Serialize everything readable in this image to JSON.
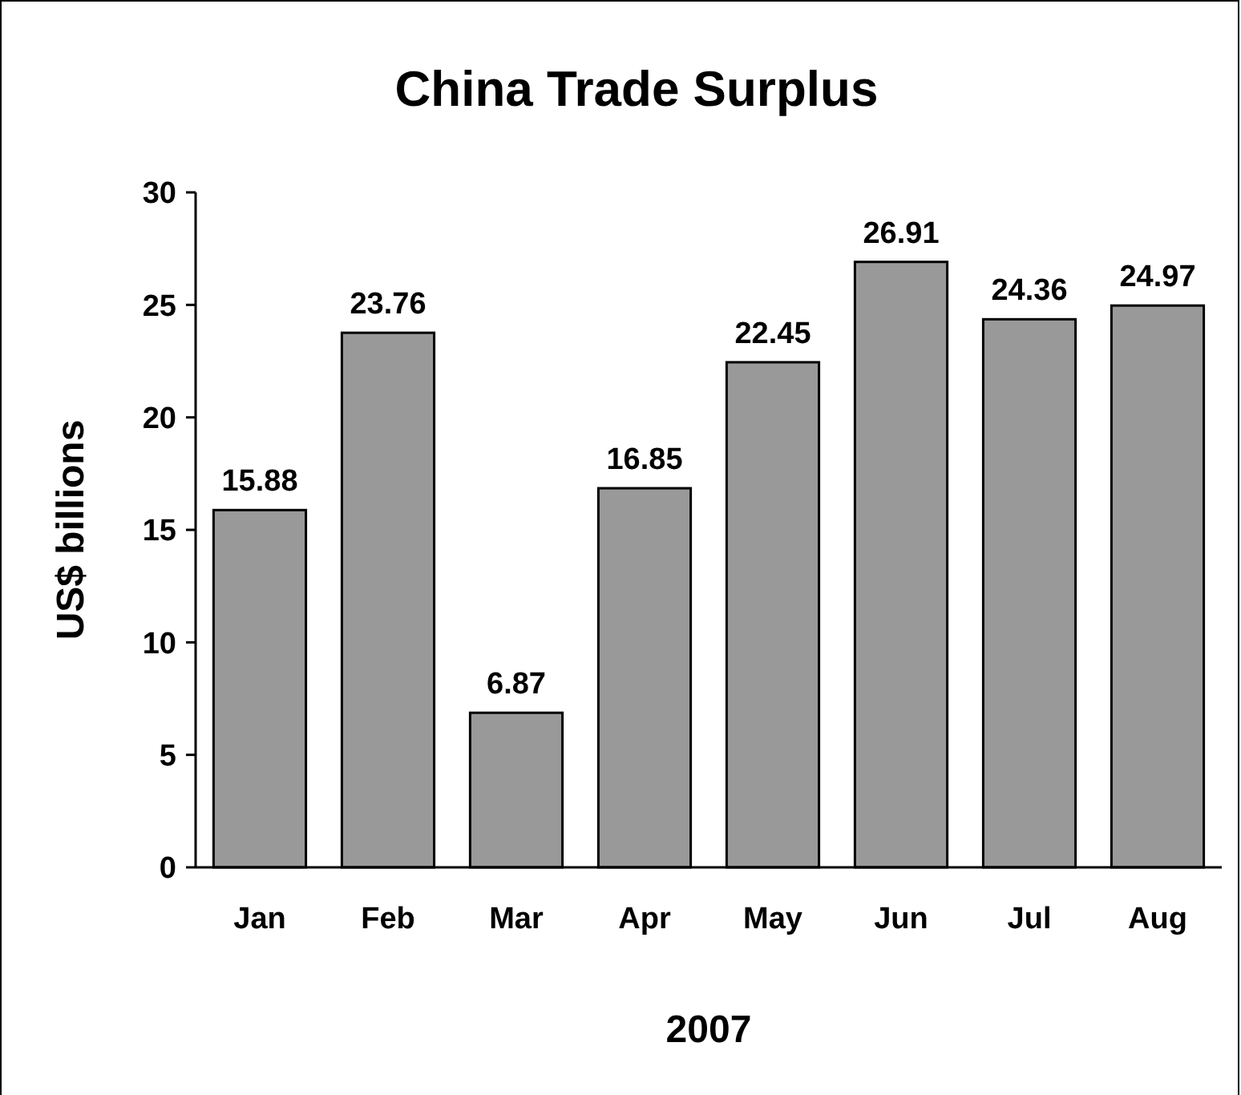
{
  "chart_data": {
    "type": "bar",
    "title": "China Trade Surplus",
    "xlabel": "2007",
    "ylabel": "US$ billions",
    "categories": [
      "Jan",
      "Feb",
      "Mar",
      "Apr",
      "May",
      "Jun",
      "Jul",
      "Aug"
    ],
    "values": [
      15.88,
      23.76,
      6.87,
      16.85,
      22.45,
      26.91,
      24.36,
      24.97
    ],
    "color": "#999999",
    "ylim": [
      0,
      30
    ],
    "yticks": [
      0,
      5,
      10,
      15,
      20,
      25,
      30
    ],
    "data_labels": true
  }
}
